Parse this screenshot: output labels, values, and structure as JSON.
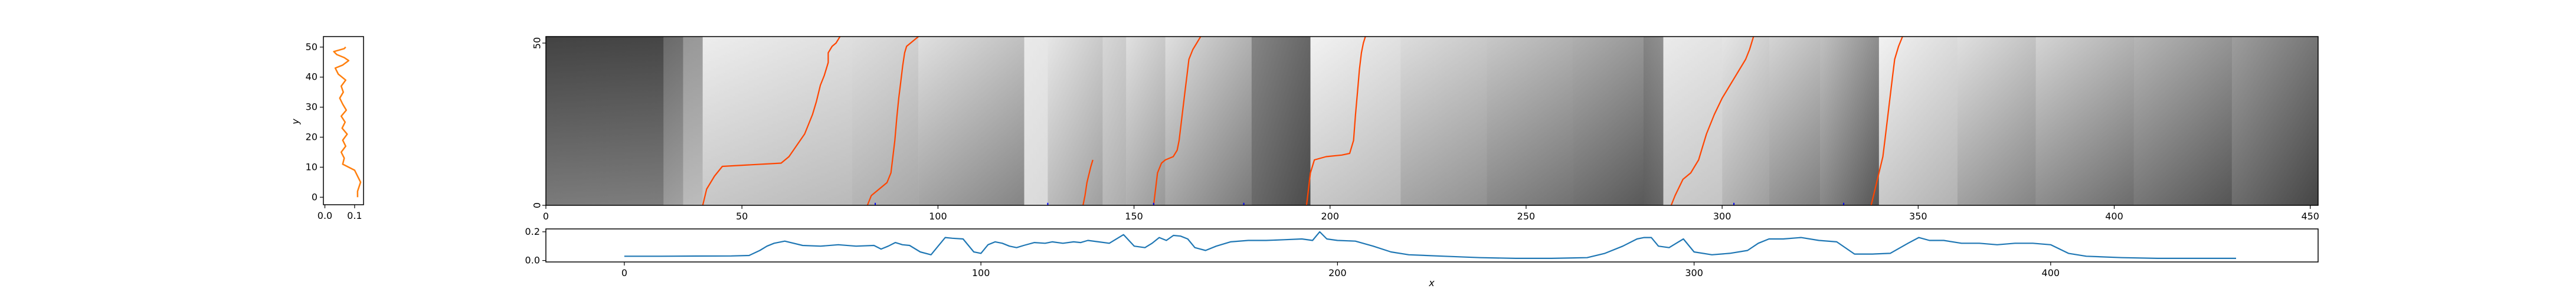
{
  "chart_data": [
    {
      "id": "profile",
      "type": "line",
      "title": "",
      "xlabel": "",
      "ylabel": "y",
      "xlim": [
        -0.005,
        0.13
      ],
      "ylim": [
        -2.5,
        53.5
      ],
      "xticks": [
        0.0,
        0.1
      ],
      "xtick_labels": [
        "0.0",
        "0.1"
      ],
      "yticks": [
        0,
        10,
        20,
        30,
        40,
        50
      ],
      "ytick_labels": [
        "0",
        "10",
        "20",
        "30",
        "40",
        "50"
      ],
      "color": "#ff7f0e",
      "series": [
        {
          "x": [
            0.11,
            0.11,
            0.12,
            0.1,
            0.06,
            0.065,
            0.055,
            0.07,
            0.06,
            0.075,
            0.058,
            0.068,
            0.055,
            0.072,
            0.06,
            0.05,
            0.062,
            0.055,
            0.07,
            0.045,
            0.035,
            0.06,
            0.08,
            0.065,
            0.04,
            0.03,
            0.065,
            0.07
          ],
          "y": [
            0,
            2,
            5,
            9,
            11,
            13,
            15,
            17,
            19,
            21,
            23,
            25,
            27,
            29,
            31,
            33,
            35,
            37,
            39,
            41,
            43,
            44,
            45.5,
            46.5,
            47.5,
            48.5,
            49.5,
            50
          ]
        }
      ]
    },
    {
      "id": "heatmap",
      "type": "heatmap",
      "title": "",
      "xlabel": "",
      "ylabel": "",
      "xlim": [
        0,
        452
      ],
      "ylim": [
        0,
        52
      ],
      "xticks": [
        0,
        50,
        100,
        150,
        200,
        250,
        300,
        350,
        400,
        450
      ],
      "xtick_labels": [
        "0",
        "50",
        "100",
        "150",
        "200",
        "250",
        "300",
        "350",
        "400",
        "450"
      ],
      "yticks": [
        0,
        50
      ],
      "ytick_labels": [
        "0",
        "50"
      ],
      "colormap": "Greys",
      "path_color": "#ff4500",
      "segment_color": "#0000ff",
      "shading_columns": [
        {
          "x0": 0,
          "x1": 30,
          "left": 0.6,
          "right": 0.58,
          "top": 0.85,
          "bottom": 0.45
        },
        {
          "x0": 30,
          "x1": 35,
          "left": 0.45,
          "right": 0.4,
          "top": 0.7,
          "bottom": 0.35
        },
        {
          "x0": 35,
          "x1": 40,
          "left": 0.3,
          "right": 0.28,
          "top": 0.5,
          "bottom": 0.25
        },
        {
          "x0": 40,
          "x1": 78,
          "left": 0.06,
          "right": 0.18,
          "top": 0.08,
          "bottom": 0.35
        },
        {
          "x0": 78,
          "x1": 95,
          "left": 0.1,
          "right": 0.22,
          "top": 0.15,
          "bottom": 0.45
        },
        {
          "x0": 95,
          "x1": 122,
          "left": 0.12,
          "right": 0.4,
          "top": 0.12,
          "bottom": 0.55
        },
        {
          "x0": 122,
          "x1": 128,
          "left": 0.12,
          "right": 0.15,
          "top": 0.05,
          "bottom": 0.15
        },
        {
          "x0": 128,
          "x1": 142,
          "left": 0.1,
          "right": 0.35,
          "top": 0.1,
          "bottom": 0.4
        },
        {
          "x0": 142,
          "x1": 148,
          "left": 0.2,
          "right": 0.3,
          "top": 0.12,
          "bottom": 0.35
        },
        {
          "x0": 148,
          "x1": 158,
          "left": 0.15,
          "right": 0.35,
          "top": 0.1,
          "bottom": 0.45
        },
        {
          "x0": 158,
          "x1": 180,
          "left": 0.1,
          "right": 0.5,
          "top": 0.15,
          "bottom": 0.55
        },
        {
          "x0": 180,
          "x1": 195,
          "left": 0.45,
          "right": 0.72,
          "top": 0.5,
          "bottom": 0.7
        },
        {
          "x0": 195,
          "x1": 218,
          "left": 0.05,
          "right": 0.2,
          "top": 0.05,
          "bottom": 0.35
        },
        {
          "x0": 218,
          "x1": 240,
          "left": 0.18,
          "right": 0.35,
          "top": 0.1,
          "bottom": 0.5
        },
        {
          "x0": 240,
          "x1": 262,
          "left": 0.3,
          "right": 0.5,
          "top": 0.15,
          "bottom": 0.6
        },
        {
          "x0": 262,
          "x1": 280,
          "left": 0.45,
          "right": 0.65,
          "top": 0.2,
          "bottom": 0.65
        },
        {
          "x0": 280,
          "x1": 285,
          "left": 0.7,
          "right": 0.6,
          "top": 0.3,
          "bottom": 0.6
        },
        {
          "x0": 285,
          "x1": 300,
          "left": 0.08,
          "right": 0.15,
          "top": 0.08,
          "bottom": 0.3
        },
        {
          "x0": 300,
          "x1": 312,
          "left": 0.1,
          "right": 0.3,
          "top": 0.1,
          "bottom": 0.45
        },
        {
          "x0": 312,
          "x1": 325,
          "left": 0.25,
          "right": 0.45,
          "top": 0.1,
          "bottom": 0.55
        },
        {
          "x0": 325,
          "x1": 340,
          "left": 0.3,
          "right": 0.75,
          "top": 0.2,
          "bottom": 0.6
        },
        {
          "x0": 340,
          "x1": 360,
          "left": 0.05,
          "right": 0.25,
          "top": 0.05,
          "bottom": 0.35
        },
        {
          "x0": 360,
          "x1": 380,
          "left": 0.15,
          "right": 0.4,
          "top": 0.1,
          "bottom": 0.55
        },
        {
          "x0": 380,
          "x1": 405,
          "left": 0.25,
          "right": 0.55,
          "top": 0.1,
          "bottom": 0.6
        },
        {
          "x0": 405,
          "x1": 430,
          "left": 0.45,
          "right": 0.75,
          "top": 0.15,
          "bottom": 0.6
        },
        {
          "x0": 430,
          "x1": 452,
          "left": 0.6,
          "right": 0.95,
          "top": 0.2,
          "bottom": 0.55
        }
      ],
      "paths": [
        {
          "x": [
            40,
            41,
            43,
            45,
            60,
            62,
            66,
            68,
            69,
            70,
            71,
            72,
            72,
            73,
            74,
            74.5,
            75
          ],
          "y": [
            0,
            5,
            9,
            12,
            13,
            15,
            22,
            28,
            32,
            37,
            40,
            44,
            47,
            49,
            50,
            51,
            52
          ]
        },
        {
          "x": [
            82,
            83,
            85,
            87,
            88,
            88.5,
            89,
            89.5,
            90,
            90.5,
            91,
            91.5,
            92,
            93,
            95
          ],
          "y": [
            0,
            3,
            5,
            7,
            10,
            15,
            20,
            27,
            33,
            38,
            43,
            47,
            49,
            50,
            52
          ]
        },
        {
          "x": [
            137,
            137.5,
            138,
            139,
            139.5
          ],
          "y": [
            0,
            3,
            7,
            12,
            14
          ]
        },
        {
          "x": [
            155,
            155.5,
            156,
            157,
            158,
            160,
            161,
            161.5,
            162,
            162.5,
            163,
            163.5,
            164,
            165,
            166,
            167
          ],
          "y": [
            0,
            5,
            10,
            13,
            14,
            15,
            17,
            20,
            25,
            30,
            35,
            40,
            45,
            48,
            50,
            52
          ]
        },
        {
          "x": [
            194,
            194.5,
            195,
            196,
            199,
            203,
            205,
            206,
            206.5,
            207,
            207.5,
            208,
            208.5,
            209
          ],
          "y": [
            0,
            5,
            10,
            14,
            15,
            15.5,
            16,
            20,
            28,
            35,
            42,
            47,
            50,
            52
          ]
        },
        {
          "x": [
            287,
            288,
            290,
            292,
            293,
            294,
            295,
            296,
            298,
            300,
            302,
            304,
            306,
            307,
            308
          ],
          "y": [
            0,
            3,
            8,
            10,
            12,
            14,
            18,
            22,
            28,
            33,
            37,
            41,
            45,
            48,
            52
          ]
        },
        {
          "x": [
            338,
            339,
            340,
            341,
            341.5,
            342,
            342.5,
            343,
            343.5,
            344,
            345,
            346
          ],
          "y": [
            0,
            5,
            10,
            15,
            20,
            25,
            30,
            35,
            40,
            45,
            49,
            52
          ]
        }
      ],
      "segments": [
        {
          "x0": 84,
          "x1": 128,
          "y": -0.5
        },
        {
          "x0": 155,
          "x1": 178,
          "y": -0.5
        },
        {
          "x0": 303,
          "x1": 331,
          "y": -0.5
        }
      ]
    },
    {
      "id": "signal",
      "type": "line",
      "title": "",
      "xlabel": "x",
      "ylabel": "",
      "xlim": [
        -22,
        475
      ],
      "ylim": [
        -0.01,
        0.22
      ],
      "xticks": [
        0,
        100,
        200,
        300,
        400
      ],
      "xtick_labels": [
        "0",
        "100",
        "200",
        "300",
        "400"
      ],
      "yticks": [
        0.0,
        0.2
      ],
      "ytick_labels": [
        "0.0",
        "0.2"
      ],
      "color": "#1f77b4",
      "series": [
        {
          "x": [
            0,
            10,
            20,
            30,
            35,
            38,
            40,
            42,
            45,
            50,
            55,
            60,
            65,
            70,
            72,
            74,
            76,
            78,
            80,
            83,
            86,
            88,
            90,
            92,
            95,
            98,
            100,
            102,
            104,
            106,
            108,
            110,
            112,
            115,
            118,
            120,
            123,
            126,
            128,
            130,
            133,
            136,
            140,
            143,
            146,
            148,
            150,
            152,
            154,
            156,
            158,
            160,
            163,
            166,
            170,
            175,
            180,
            185,
            190,
            193,
            195,
            197,
            200,
            205,
            210,
            215,
            220,
            230,
            240,
            250,
            260,
            270,
            275,
            280,
            284,
            286,
            288,
            290,
            293,
            295,
            297,
            300,
            305,
            310,
            315,
            318,
            321,
            325,
            330,
            335,
            340,
            345,
            350,
            355,
            360,
            363,
            366,
            370,
            375,
            380,
            385,
            390,
            395,
            400,
            405,
            410,
            420,
            430,
            440,
            452
          ],
          "y": [
            0.03,
            0.03,
            0.031,
            0.032,
            0.035,
            0.07,
            0.1,
            0.12,
            0.135,
            0.105,
            0.1,
            0.11,
            0.1,
            0.105,
            0.08,
            0.1,
            0.125,
            0.11,
            0.105,
            0.06,
            0.04,
            0.1,
            0.16,
            0.155,
            0.15,
            0.06,
            0.05,
            0.11,
            0.13,
            0.12,
            0.1,
            0.09,
            0.105,
            0.125,
            0.12,
            0.13,
            0.12,
            0.13,
            0.125,
            0.14,
            0.13,
            0.12,
            0.18,
            0.1,
            0.09,
            0.12,
            0.16,
            0.14,
            0.175,
            0.17,
            0.15,
            0.09,
            0.07,
            0.1,
            0.13,
            0.14,
            0.14,
            0.145,
            0.15,
            0.14,
            0.2,
            0.15,
            0.14,
            0.135,
            0.1,
            0.06,
            0.04,
            0.03,
            0.02,
            0.015,
            0.015,
            0.02,
            0.05,
            0.1,
            0.15,
            0.16,
            0.16,
            0.1,
            0.09,
            0.12,
            0.15,
            0.06,
            0.04,
            0.05,
            0.07,
            0.12,
            0.15,
            0.15,
            0.16,
            0.14,
            0.13,
            0.045,
            0.045,
            0.05,
            0.12,
            0.16,
            0.14,
            0.14,
            0.12,
            0.12,
            0.11,
            0.12,
            0.12,
            0.11,
            0.05,
            0.03,
            0.02,
            0.015,
            0.015,
            0.015
          ]
        }
      ]
    }
  ]
}
